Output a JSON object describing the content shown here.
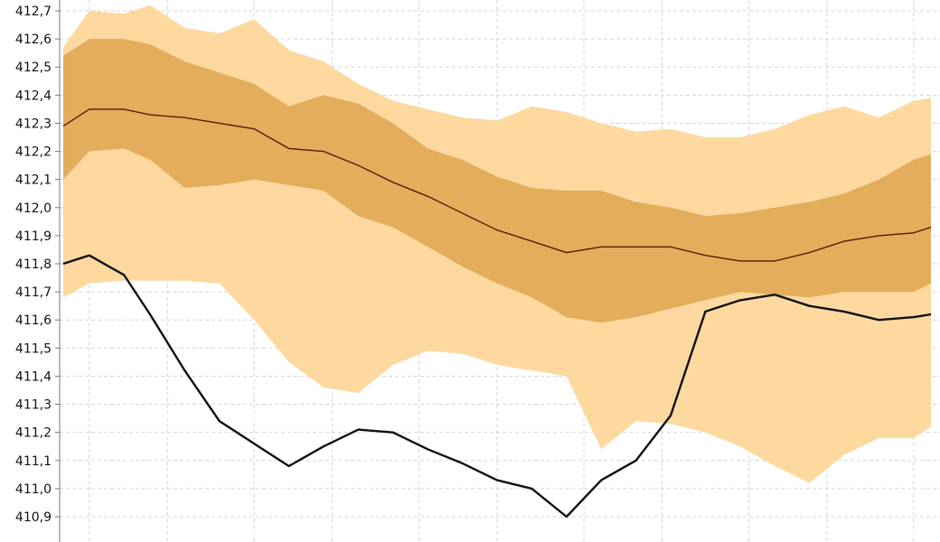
{
  "chart_data": {
    "type": "area",
    "title": "",
    "xlabel": "",
    "ylabel": "",
    "grid": true,
    "ylim": [
      410.8,
      412.75
    ],
    "xlim": [
      0,
      100
    ],
    "y_ticks": [
      "412,7",
      "412,6",
      "412,5",
      "412,4",
      "412,3",
      "412,2",
      "412,1",
      "412,0",
      "411,9",
      "411,8",
      "411,7",
      "411,6",
      "411,5",
      "411,4",
      "411,3",
      "411,2",
      "411,1",
      "411,0",
      "410,9"
    ],
    "y_tick_values": [
      412.7,
      412.6,
      412.5,
      412.4,
      412.3,
      412.2,
      412.1,
      412.0,
      411.9,
      411.8,
      411.7,
      411.6,
      411.5,
      411.4,
      411.3,
      411.2,
      411.1,
      411.0,
      410.9
    ],
    "x_grid": [
      3,
      12,
      22,
      31,
      41,
      50,
      60,
      69,
      79,
      88,
      98
    ],
    "x": [
      0,
      3,
      7,
      10,
      14,
      18,
      22,
      26,
      30,
      34,
      38,
      42,
      46,
      50,
      54,
      58,
      62,
      66,
      70,
      74,
      78,
      82,
      86,
      90,
      94,
      98,
      100
    ],
    "series": [
      {
        "values": [
          412.29,
          412.35,
          412.35,
          412.33,
          412.32,
          412.3,
          412.28,
          412.21,
          412.2,
          412.15,
          412.09,
          412.04,
          411.98,
          411.92,
          411.88,
          411.84,
          411.86,
          411.86,
          411.86,
          411.83,
          411.81,
          411.81,
          411.84,
          411.88,
          411.9,
          411.91,
          411.93
        ],
        "color": "#5a1a00"
      },
      {
        "lower": [
          412.1,
          412.2,
          412.21,
          412.17,
          412.07,
          412.08,
          412.1,
          412.08,
          412.06,
          411.97,
          411.93,
          411.86,
          411.79,
          411.73,
          411.68,
          411.61,
          411.59,
          411.61,
          411.64,
          411.67,
          411.7,
          411.69,
          411.68,
          411.7,
          411.7,
          411.7,
          411.73
        ],
        "upper": [
          412.54,
          412.6,
          412.6,
          412.58,
          412.52,
          412.48,
          412.44,
          412.36,
          412.4,
          412.37,
          412.3,
          412.21,
          412.17,
          412.11,
          412.07,
          412.06,
          412.06,
          412.02,
          412.0,
          411.97,
          411.98,
          412.0,
          412.02,
          412.05,
          412.1,
          412.17,
          412.19
        ],
        "color": "#e3ad5c"
      },
      {
        "lower": [
          411.68,
          411.73,
          411.74,
          411.74,
          411.74,
          411.73,
          411.6,
          411.45,
          411.36,
          411.34,
          411.44,
          411.49,
          411.48,
          411.44,
          411.42,
          411.4,
          411.14,
          411.24,
          411.23,
          411.2,
          411.15,
          411.08,
          411.02,
          411.12,
          411.18,
          411.18,
          411.22
        ],
        "upper": [
          412.57,
          412.7,
          412.69,
          412.72,
          412.64,
          412.62,
          412.67,
          412.56,
          412.52,
          412.44,
          412.38,
          412.35,
          412.32,
          412.31,
          412.36,
          412.34,
          412.3,
          412.27,
          412.28,
          412.25,
          412.25,
          412.28,
          412.33,
          412.36,
          412.32,
          412.38,
          412.39
        ],
        "color": "#fdd9a0"
      },
      {
        "values": [
          411.8,
          411.83,
          411.76,
          411.62,
          411.42,
          411.24,
          411.16,
          411.08,
          411.15,
          411.21,
          411.2,
          411.14,
          411.09,
          411.03,
          411.0,
          410.9,
          411.03,
          411.1,
          411.26,
          411.63,
          411.67,
          411.69,
          411.65,
          411.63,
          411.6,
          411.61,
          411.62
        ],
        "color": "#111111"
      }
    ]
  }
}
